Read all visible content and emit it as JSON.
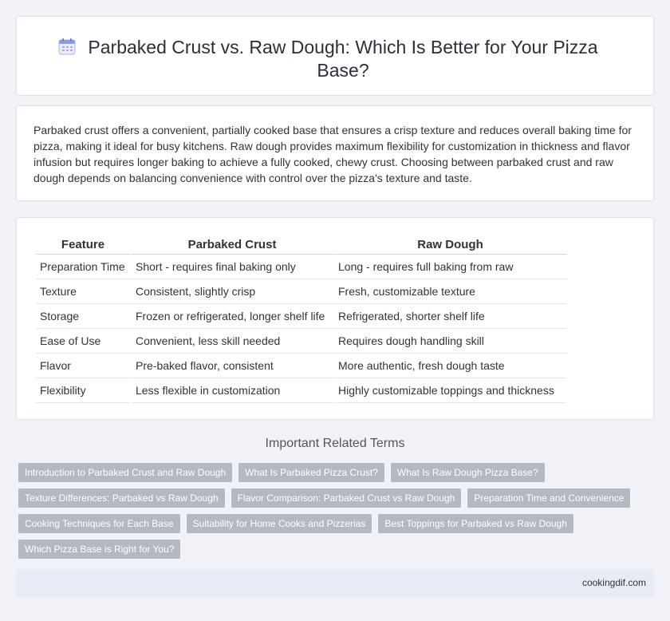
{
  "header": {
    "title": "Parbaked Crust vs. Raw Dough: Which Is Better for Your Pizza Base?",
    "icon": "calendar-icon"
  },
  "intro": {
    "text": "Parbaked crust offers a convenient, partially cooked base that ensures a crisp texture and reduces overall baking time for pizza, making it ideal for busy kitchens. Raw dough provides maximum flexibility for customization in thickness and flavor infusion but requires longer baking to achieve a fully cooked, chewy crust. Choosing between parbaked crust and raw dough depends on balancing convenience with control over the pizza's texture and taste."
  },
  "table": {
    "headers": [
      "Feature",
      "Parbaked Crust",
      "Raw Dough"
    ],
    "rows": [
      [
        "Preparation Time",
        "Short - requires final baking only",
        "Long - requires full baking from raw"
      ],
      [
        "Texture",
        "Consistent, slightly crisp",
        "Fresh, customizable texture"
      ],
      [
        "Storage",
        "Frozen or refrigerated, longer shelf life",
        "Refrigerated, shorter shelf life"
      ],
      [
        "Ease of Use",
        "Convenient, less skill needed",
        "Requires dough handling skill"
      ],
      [
        "Flavor",
        "Pre-baked flavor, consistent",
        "More authentic, fresh dough taste"
      ],
      [
        "Flexibility",
        "Less flexible in customization",
        "Highly customizable toppings and thickness"
      ]
    ]
  },
  "related": {
    "title": "Important Related Terms",
    "rows": [
      [
        "Introduction to Parbaked Crust and Raw Dough",
        "What Is Parbaked Pizza Crust?",
        "What Is Raw Dough Pizza Base?"
      ],
      [
        "Texture Differences: Parbaked vs Raw Dough",
        "Flavor Comparison: Parbaked Crust vs Raw Dough",
        "Preparation Time and Convenience"
      ],
      [
        "Cooking Techniques for Each Base",
        "Suitability for Home Cooks and Pizzerias",
        "Best Toppings for Parbaked vs Raw Dough"
      ],
      [
        "Which Pizza Base is Right for You?"
      ]
    ]
  },
  "footer": {
    "site": "cookingdif.com"
  },
  "colors": {
    "background": "#f0f2f8",
    "tag": "#b3b8c1",
    "footer": "#e7ebf5",
    "icon_accent": "#7c8fd6"
  }
}
